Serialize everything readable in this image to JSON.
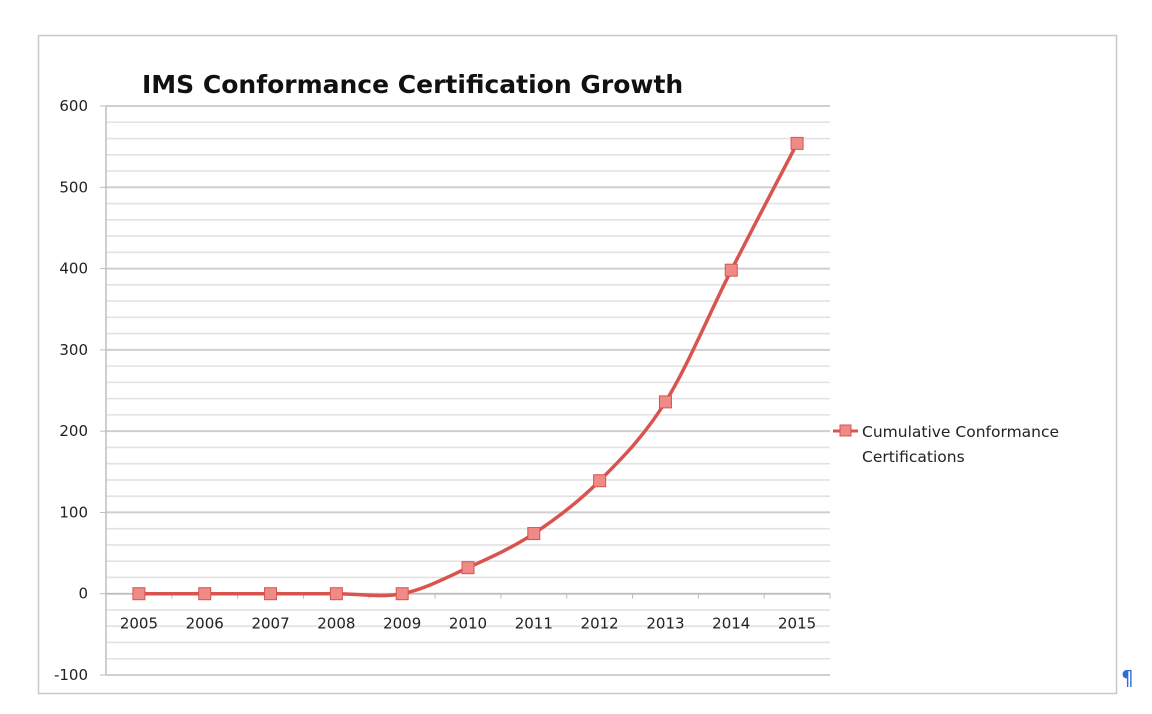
{
  "chart_data": {
    "type": "line",
    "title": "IMS Conformance Certification Growth",
    "xlabel": "",
    "ylabel": "",
    "categories": [
      "2005",
      "2006",
      "2007",
      "2008",
      "2009",
      "2010",
      "2011",
      "2012",
      "2013",
      "2014",
      "2015"
    ],
    "series": [
      {
        "name": "Cumulative Conformance Certifications",
        "name_lines": [
          "Cumulative Conformance",
          "Certifications"
        ],
        "color": "#d9534f",
        "marker_color": "#f08a87",
        "values": [
          0,
          0,
          0,
          0,
          0,
          32,
          74,
          139,
          236,
          398,
          554
        ]
      }
    ],
    "ylim": [
      -100,
      600
    ],
    "yticks": [
      "-100",
      "0",
      "100",
      "200",
      "300",
      "400",
      "500",
      "600"
    ],
    "minor_grid_step": 20,
    "grid": true,
    "legend_position": "right",
    "smooth": true
  },
  "paragraph_mark": "¶"
}
